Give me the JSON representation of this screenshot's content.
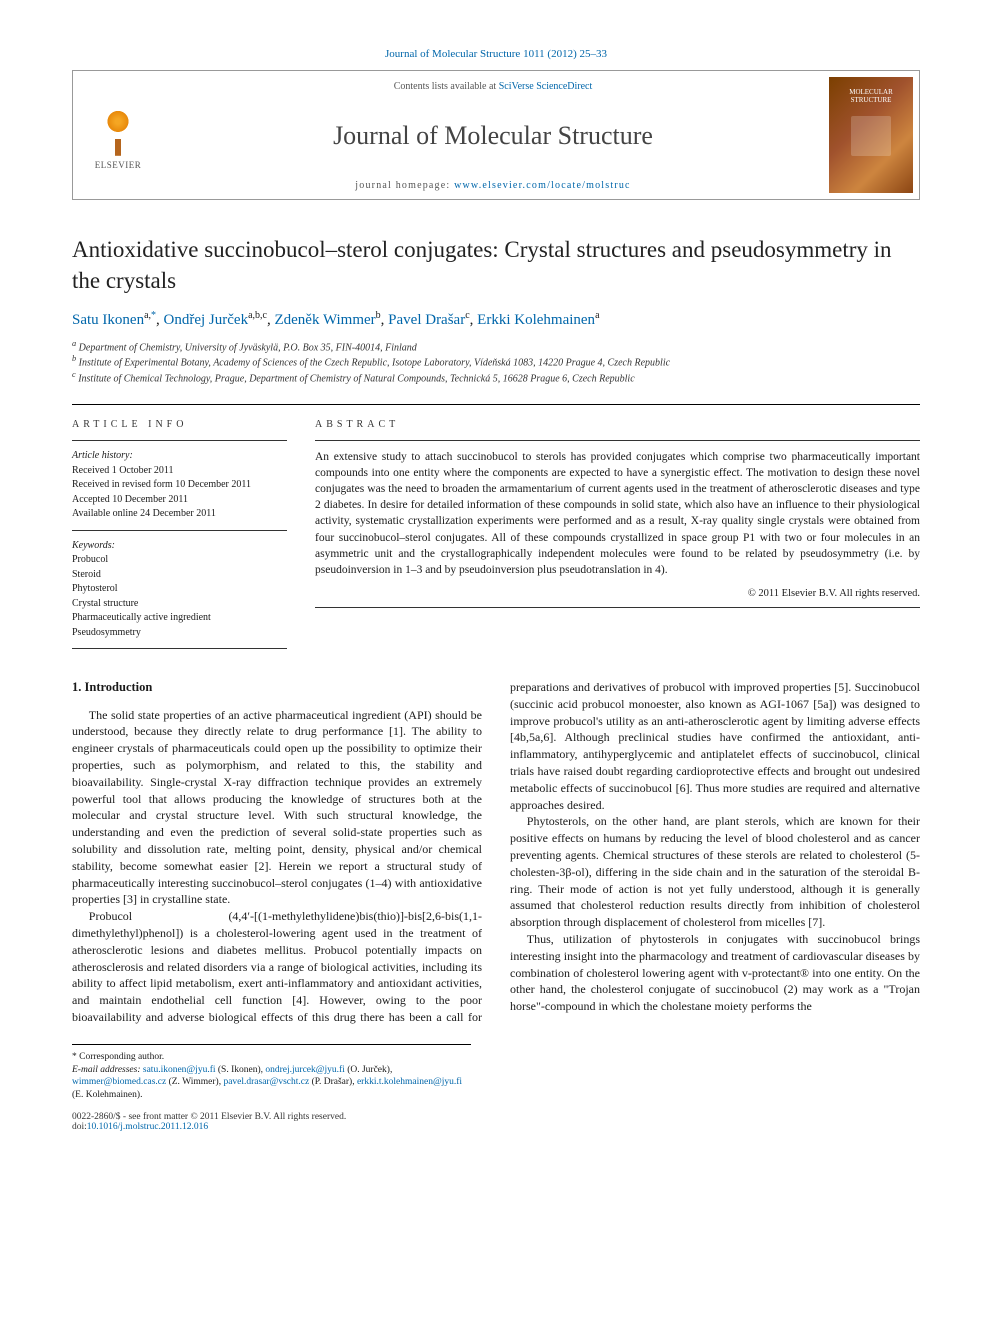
{
  "top_citation": "Journal of Molecular Structure 1011 (2012) 25–33",
  "header": {
    "contents_prefix": "Contents lists available at ",
    "contents_link": "SciVerse ScienceDirect",
    "journal_name": "Journal of Molecular Structure",
    "homepage_prefix": "journal homepage: ",
    "homepage_link": "www.elsevier.com/locate/molstruc",
    "publisher_label": "ELSEVIER",
    "cover_title": "MOLECULAR STRUCTURE"
  },
  "title": "Antioxidative succinobucol–sterol conjugates: Crystal structures and pseudosymmetry in the crystals",
  "authors_html_parts": {
    "a1_name": "Satu Ikonen",
    "a1_sup": "a,",
    "a1_corr": "*",
    "a2_name": "Ondřej Jurček",
    "a2_sup": "a,b,c",
    "a3_name": "Zdeněk Wimmer",
    "a3_sup": "b",
    "a4_name": "Pavel Drašar",
    "a4_sup": "c",
    "a5_name": "Erkki Kolehmainen",
    "a5_sup": "a"
  },
  "affiliations": {
    "a": "Department of Chemistry, University of Jyväskylä, P.O. Box 35, FIN-40014, Finland",
    "b": "Institute of Experimental Botany, Academy of Sciences of the Czech Republic, Isotope Laboratory, Vídeňská 1083, 14220 Prague 4, Czech Republic",
    "c": "Institute of Chemical Technology, Prague, Department of Chemistry of Natural Compounds, Technická 5, 16628 Prague 6, Czech Republic"
  },
  "article_info": {
    "section_label": "ARTICLE INFO",
    "history_label": "Article history:",
    "received": "Received 1 October 2011",
    "revised": "Received in revised form 10 December 2011",
    "accepted": "Accepted 10 December 2011",
    "online": "Available online 24 December 2011",
    "keywords_label": "Keywords:",
    "keywords": [
      "Probucol",
      "Steroid",
      "Phytosterol",
      "Crystal structure",
      "Pharmaceutically active ingredient",
      "Pseudosymmetry"
    ]
  },
  "abstract": {
    "section_label": "ABSTRACT",
    "text": "An extensive study to attach succinobucol to sterols has provided conjugates which comprise two pharmaceutically important compounds into one entity where the components are expected to have a synergistic effect. The motivation to design these novel conjugates was the need to broaden the armamentarium of current agents used in the treatment of atherosclerotic diseases and type 2 diabetes. In desire for detailed information of these compounds in solid state, which also have an influence to their physiological activity, systematic crystallization experiments were performed and as a result, X-ray quality single crystals were obtained from four succinobucol–sterol conjugates. All of these compounds crystallized in space group P1 with two or four molecules in an asymmetric unit and the crystallographically independent molecules were found to be related by pseudosymmetry (i.e. by pseudoinversion in 1–3 and by pseudoinversion plus pseudotranslation in 4).",
    "copyright": "© 2011 Elsevier B.V. All rights reserved."
  },
  "body": {
    "h_intro": "1. Introduction",
    "p1": "The solid state properties of an active pharmaceutical ingredient (API) should be understood, because they directly relate to drug performance [1]. The ability to engineer crystals of pharmaceuticals could open up the possibility to optimize their properties, such as polymorphism, and related to this, the stability and bioavailability. Single-crystal X-ray diffraction technique provides an extremely powerful tool that allows producing the knowledge of structures both at the molecular and crystal structure level. With such structural knowledge, the understanding and even the prediction of several solid-state properties such as solubility and dissolution rate, melting point, density, physical and/or chemical stability, become somewhat easier [2]. Herein we report a structural study of pharmaceutically interesting succinobucol–sterol conjugates (1–4) with antioxidative properties [3] in crystalline state.",
    "p2": "Probucol (4,4′-[(1-methylethylidene)bis(thio)]-bis[2,6-bis(1,1-dimethylethyl)phenol]) is a cholesterol-lowering agent used in the treatment of atherosclerotic lesions and diabetes mellitus. Probucol potentially impacts on atherosclerosis and related disorders via a range of biological activities, including its ability to affect lipid metabolism, exert anti-inflammatory and antioxidant activities, and maintain endothelial cell function [4]. However, owing to the poor bioavailability and adverse biological effects of this drug there has been a call for preparations and derivatives of probucol with improved properties [5]. Succinobucol (succinic acid probucol monoester, also known as AGI-1067 [5a]) was designed to improve probucol's utility as an anti-atherosclerotic agent by limiting adverse effects [4b,5a,6]. Although preclinical studies have confirmed the antioxidant, anti-inflammatory, antihyperglycemic and antiplatelet effects of succinobucol, clinical trials have raised doubt regarding cardioprotective effects and brought out undesired metabolic effects of succinobucol [6]. Thus more studies are required and alternative approaches desired.",
    "p3": "Phytosterols, on the other hand, are plant sterols, which are known for their positive effects on humans by reducing the level of blood cholesterol and as cancer preventing agents. Chemical structures of these sterols are related to cholesterol (5-cholesten-3β-ol), differing in the side chain and in the saturation of the steroidal B-ring. Their mode of action is not yet fully understood, although it is generally assumed that cholesterol reduction results directly from inhibition of cholesterol absorption through displacement of cholesterol from micelles [7].",
    "p4": "Thus, utilization of phytosterols in conjugates with succinobucol brings interesting insight into the pharmacology and treatment of cardiovascular diseases by combination of cholesterol lowering agent with v-protectant® into one entity. On the other hand, the cholesterol conjugate of succinobucol (2) may work as a \"Trojan horse\"-compound in which the cholestane moiety performs the"
  },
  "footnotes": {
    "corr_label": "* Corresponding author.",
    "emails_label": "E-mail addresses:",
    "emails": [
      {
        "addr": "satu.ikonen@jyu.fi",
        "who": "(S. Ikonen)"
      },
      {
        "addr": "ondrej.jurcek@jyu.fi",
        "who": "(O. Jurček)"
      },
      {
        "addr": "wimmer@biomed.cas.cz",
        "who": "(Z. Wimmer)"
      },
      {
        "addr": "pavel.drasar@vscht.cz",
        "who": "(P. Drašar)"
      },
      {
        "addr": "erkki.t.kolehmainen@jyu.fi",
        "who": "(E. Kolehmainen)"
      }
    ]
  },
  "bottom": {
    "issn_line": "0022-2860/$ - see front matter © 2011 Elsevier B.V. All rights reserved.",
    "doi_prefix": "doi:",
    "doi": "10.1016/j.molstruc.2011.12.016"
  },
  "refs": {
    "r1": "[1]",
    "r2": "[2]",
    "r3": "[3]",
    "r4": "[4]",
    "r5": "[5]",
    "r5a": "[5a]",
    "r4b5a6": "[4b,5a,6]",
    "r6": "[6]",
    "r7": "[7]"
  },
  "colors": {
    "link": "#0066aa",
    "text": "#1a1a1a",
    "rule": "#000000"
  }
}
